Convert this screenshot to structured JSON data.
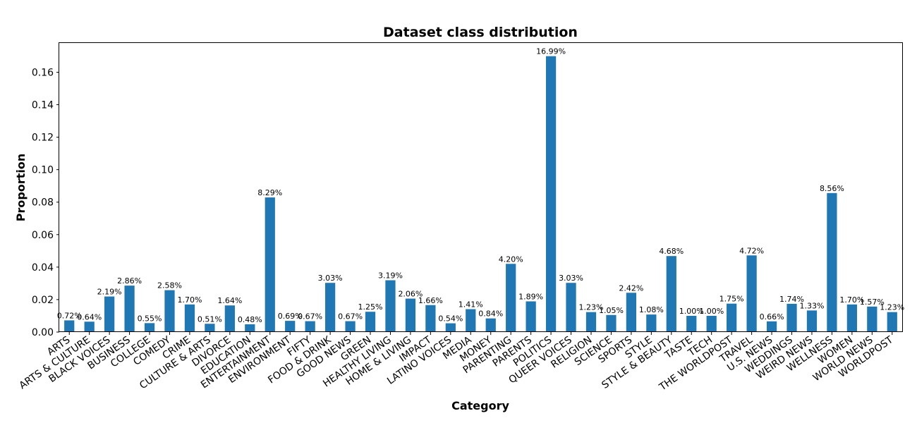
{
  "chart_data": {
    "type": "bar",
    "title": "Dataset class distribution",
    "xlabel": "Category",
    "ylabel": "Proportion",
    "ylim": [
      0,
      0.178
    ],
    "yticks": [
      "0.00",
      "0.02",
      "0.04",
      "0.06",
      "0.08",
      "0.10",
      "0.12",
      "0.14",
      "0.16"
    ],
    "bar_color": "#1f77b4",
    "grid": false,
    "categories": [
      "ARTS",
      "ARTS & CULTURE",
      "BLACK VOICES",
      "BUSINESS",
      "COLLEGE",
      "COMEDY",
      "CRIME",
      "CULTURE & ARTS",
      "DIVORCE",
      "EDUCATION",
      "ENTERTAINMENT",
      "ENVIRONMENT",
      "FIFTY",
      "FOOD & DRINK",
      "GOOD NEWS",
      "GREEN",
      "HEALTHY LIVING",
      "HOME & LIVING",
      "IMPACT",
      "LATINO VOICES",
      "MEDIA",
      "MONEY",
      "PARENTING",
      "PARENTS",
      "POLITICS",
      "QUEER VOICES",
      "RELIGION",
      "SCIENCE",
      "SPORTS",
      "STYLE",
      "STYLE & BEAUTY",
      "TASTE",
      "TECH",
      "THE WORLDPOST",
      "TRAVEL",
      "U.S. NEWS",
      "WEDDINGS",
      "WEIRD NEWS",
      "WELLNESS",
      "WOMEN",
      "WORLD NEWS",
      "WORLDPOST"
    ],
    "values": [
      0.0072,
      0.0064,
      0.0219,
      0.0286,
      0.0055,
      0.0258,
      0.017,
      0.0051,
      0.0164,
      0.0048,
      0.0829,
      0.0069,
      0.0067,
      0.0303,
      0.0067,
      0.0125,
      0.0319,
      0.0206,
      0.0166,
      0.0054,
      0.0141,
      0.0084,
      0.042,
      0.0189,
      0.1699,
      0.0303,
      0.0123,
      0.0105,
      0.0242,
      0.0108,
      0.0468,
      0.01,
      0.01,
      0.0175,
      0.0472,
      0.0066,
      0.0174,
      0.0133,
      0.0856,
      0.017,
      0.0157,
      0.0123
    ],
    "labels": [
      "0.72%",
      "0.64%",
      "2.19%",
      "2.86%",
      "0.55%",
      "2.58%",
      "1.70%",
      "0.51%",
      "1.64%",
      "0.48%",
      "8.29%",
      "0.69%",
      "0.67%",
      "3.03%",
      "0.67%",
      "1.25%",
      "3.19%",
      "2.06%",
      "1.66%",
      "0.54%",
      "1.41%",
      "0.84%",
      "4.20%",
      "1.89%",
      "16.99%",
      "3.03%",
      "1.23%",
      "1.05%",
      "2.42%",
      "1.08%",
      "4.68%",
      "1.00%",
      "1.00%",
      "1.75%",
      "4.72%",
      "0.66%",
      "1.74%",
      "1.33%",
      "8.56%",
      "1.70%",
      "1.57%",
      "1.23%"
    ]
  }
}
